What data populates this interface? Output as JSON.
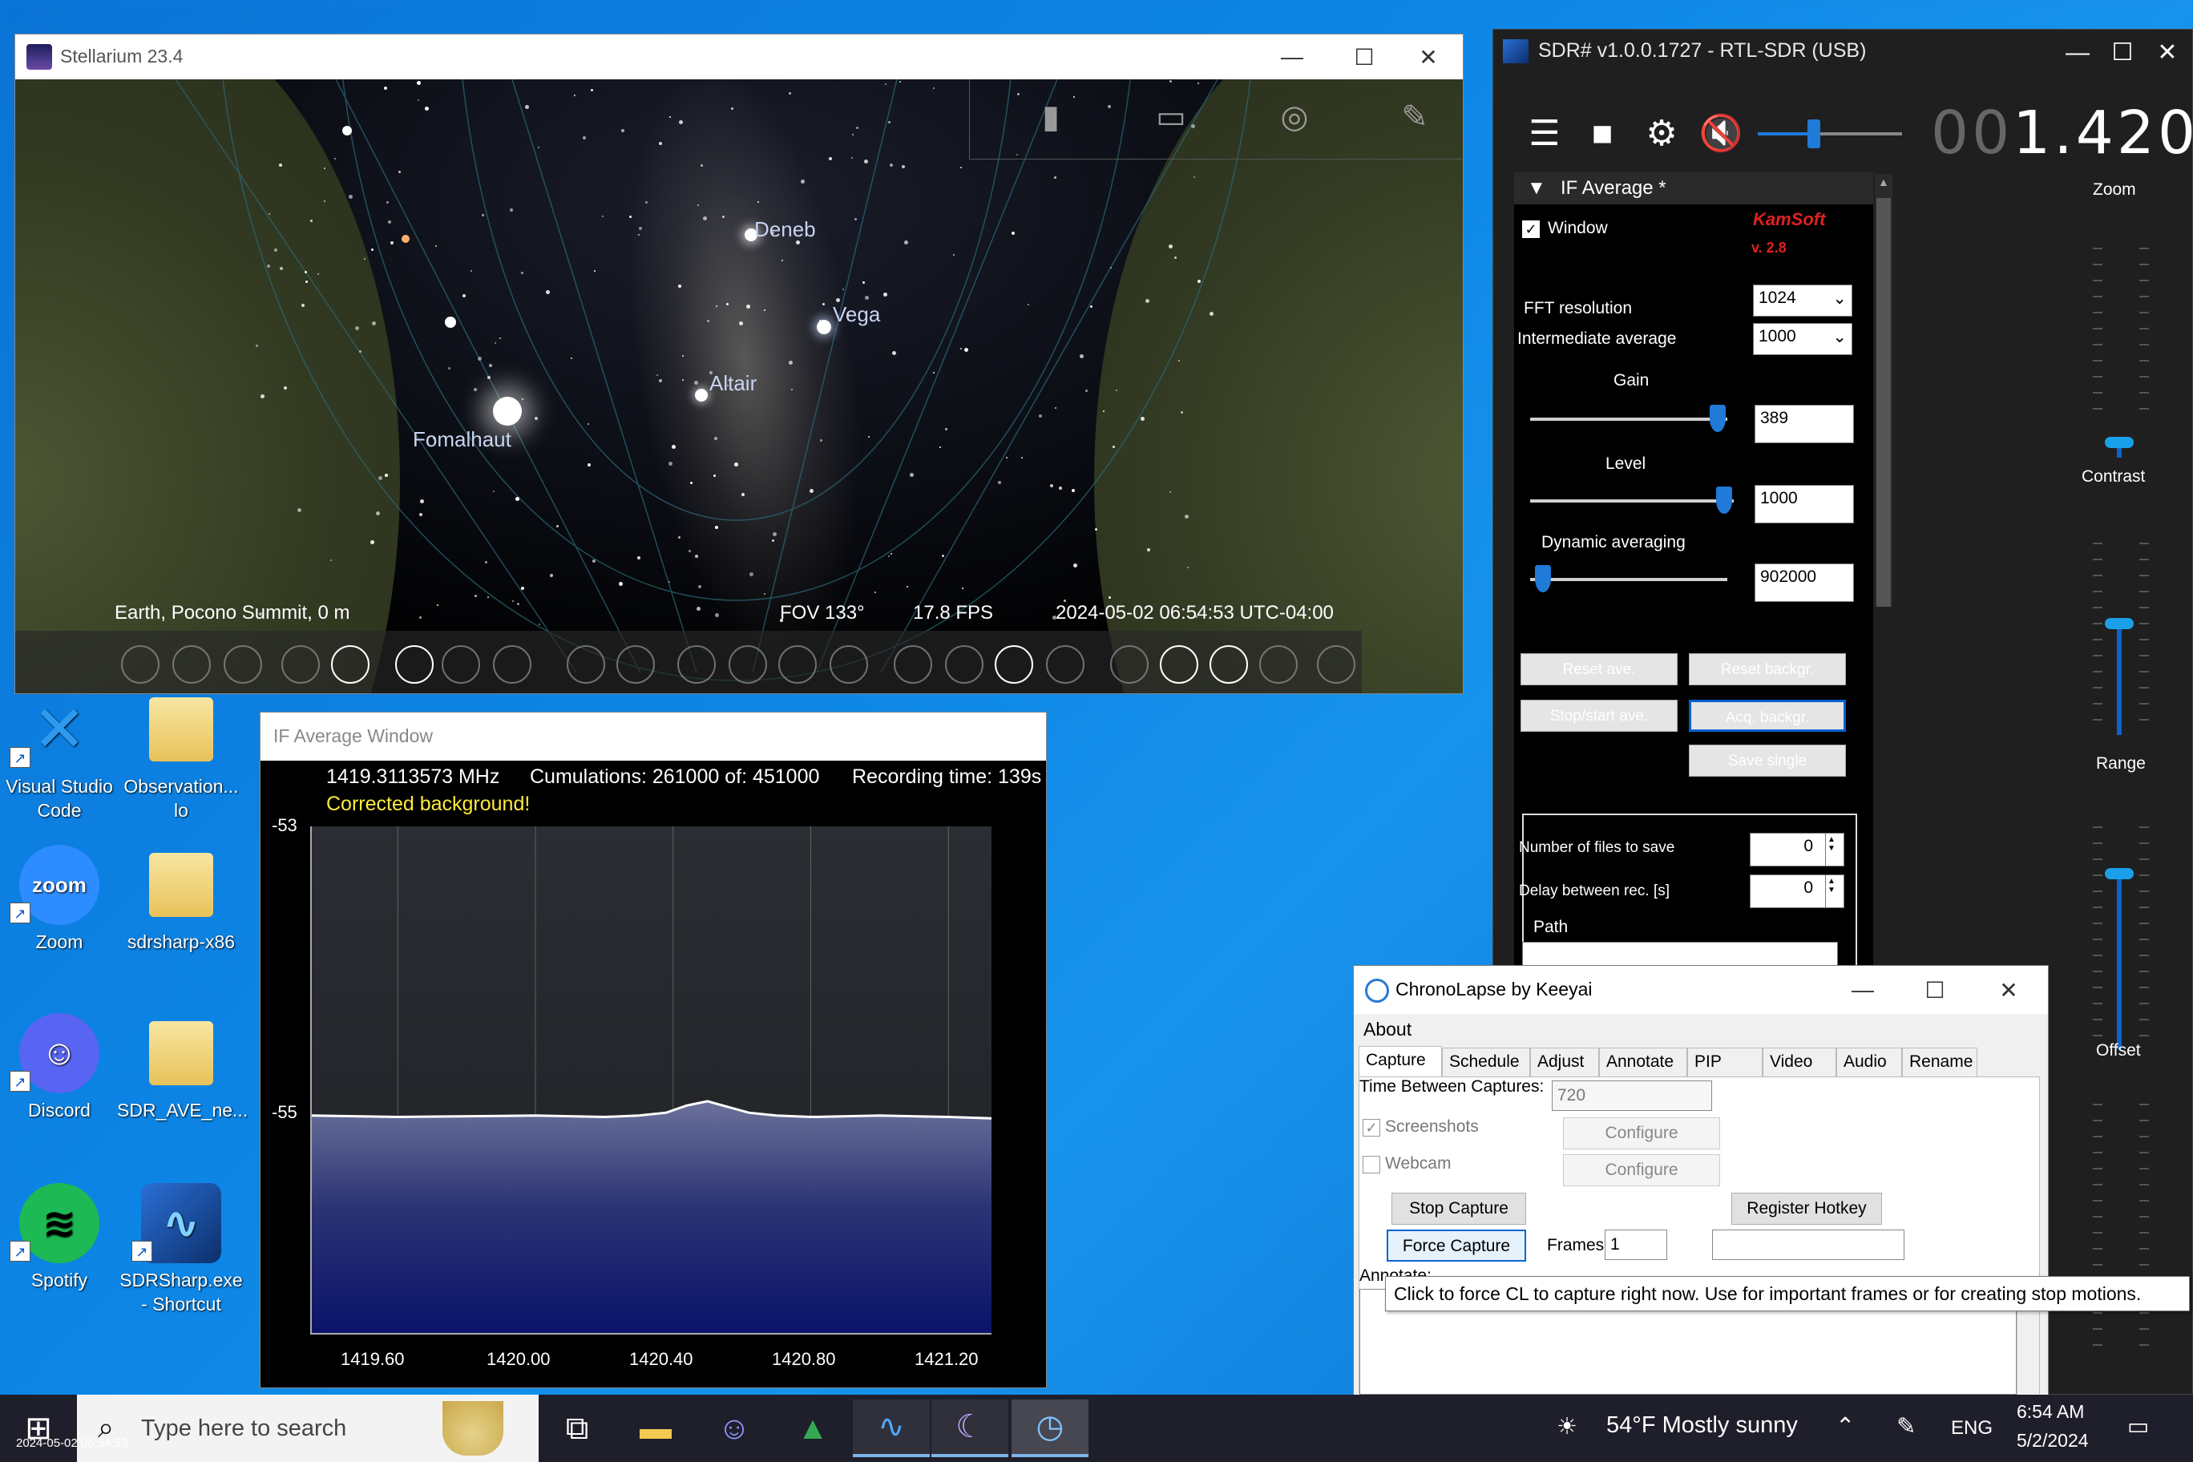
{
  "colors": {
    "desktop_blue": "#0d86e6",
    "sdr_bg": "#1f1f1f",
    "accent_blue": "#1f7ad8",
    "kamsoft_red": "#e02020",
    "corrected_yellow": "#ffeb3b"
  },
  "desktop": {
    "icons": [
      {
        "label": "Visual Studio Code",
        "icon": "vscode-icon"
      },
      {
        "label": "Observation... lo",
        "icon": "folder-icon"
      },
      {
        "label": "Zoom",
        "icon": "zoom-icon"
      },
      {
        "label": "sdrsharp-x86",
        "icon": "folder-icon"
      },
      {
        "label": "Discord",
        "icon": "discord-icon"
      },
      {
        "label": "SDR_AVE_ne...",
        "icon": "folder-icon"
      },
      {
        "label": "Spotify",
        "icon": "spotify-icon"
      },
      {
        "label": "SDRSharp.exe - Shortcut",
        "icon": "sdrsharp-icon"
      }
    ]
  },
  "stellarium": {
    "title": "Stellarium 23.4",
    "stars": [
      "Deneb",
      "Vega",
      "Altair",
      "Fomalhaut"
    ],
    "status": {
      "location": "Earth, Pocono Summit, 0 m",
      "fov": "FOV 133°",
      "fps": "17.8 FPS",
      "datetime": "2024-05-02 06:54:53 UTC-04:00"
    },
    "controls": {
      "minimize": "—",
      "maximize": "☐",
      "close": "✕"
    }
  },
  "sdr": {
    "title": "SDR# v1.0.0.1727 - RTL-SDR (USB)",
    "frequency_dim": "00",
    "frequency": "1.420.",
    "panel_title": "IF Average *",
    "window_label": "Window",
    "kamsoft": "KamSoft",
    "version": "v. 2.8",
    "fft_label": "FFT resolution",
    "fft_value": "1024",
    "intermediate_label": "Intermediate average",
    "intermediate_value": "1000",
    "gain_label": "Gain",
    "gain_value": "389",
    "level_label": "Level",
    "level_value": "1000",
    "dynavg_label": "Dynamic averaging",
    "dynavg_value": "902000",
    "buttons": {
      "reset_ave": "Reset ave.",
      "reset_backgr": "Reset backgr.",
      "stop_start": "Stop/start ave.",
      "acq_backgr": "Acq. backgr.",
      "save_single": "Save single"
    },
    "files_label": "Number of files to save",
    "files_value": "0",
    "delay_label": "Delay between rec. [s]",
    "delay_value": "0",
    "path_label": "Path",
    "right": {
      "zoom": "Zoom",
      "contrast": "Contrast",
      "range": "Range",
      "offset": "Offset"
    }
  },
  "ifavg": {
    "title": "IF Average Window",
    "frequency": "1419.3113573 MHz",
    "cumulations": "Cumulations: 261000 of: 451000",
    "recording": "Recording time: 139s",
    "corrected": "Corrected background!",
    "y_ticks": [
      "-53",
      "-55"
    ],
    "x_ticks": [
      "1419.60",
      "1420.00",
      "1420.40",
      "1420.80",
      "1421.20"
    ]
  },
  "chart_data": {
    "type": "area",
    "xlabel": "",
    "ylabel": "",
    "xlim": [
      1419.35,
      1421.33
    ],
    "ylim": [
      -56.55,
      -53.0
    ],
    "x": [
      1419.35,
      1419.6,
      1420.0,
      1420.2,
      1420.3,
      1420.38,
      1420.44,
      1420.5,
      1420.56,
      1420.62,
      1420.7,
      1420.8,
      1421.0,
      1421.2,
      1421.33
    ],
    "series": [
      {
        "values": [
          -55.02,
          -55.03,
          -55.02,
          -55.03,
          -55.02,
          -55.0,
          -54.95,
          -54.92,
          -54.96,
          -55.0,
          -55.02,
          -55.03,
          -55.02,
          -55.03,
          -55.04
        ]
      }
    ],
    "x_ticks": [
      1419.6,
      1420.0,
      1420.4,
      1420.8,
      1421.2
    ],
    "y_ticks": [
      -53,
      -55
    ],
    "grid": true
  },
  "chrono": {
    "title": "ChronoLapse by Keeyai",
    "menu": "About",
    "tabs": [
      "Capture",
      "Schedule",
      "Adjust",
      "Annotate",
      "PIP",
      "Video",
      "Audio",
      "Rename"
    ],
    "time_between": "Time Between Captures:",
    "time_value": "720",
    "screenshots": "Screenshots",
    "webcam": "Webcam",
    "configure": "Configure",
    "stop_capture": "Stop Capture",
    "register_hotkey": "Register Hotkey",
    "force_capture": "Force Capture",
    "frames_label": "Frames",
    "frames_value": "1",
    "annotate": "Annotate:",
    "tooltip": "Click to force CL to capture right now. Use for important frames or for creating stop motions."
  },
  "taskbar": {
    "search_placeholder": "Type here to search",
    "weather": "54°F  Mostly sunny",
    "lang": "ENG",
    "time": "6:54 AM",
    "date": "5/2/2024",
    "stamp": "2024-05-02 06:54:53"
  }
}
